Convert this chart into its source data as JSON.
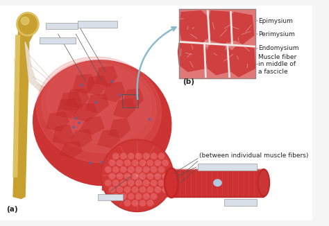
{
  "bg_color": "#f5f5f5",
  "label_a": "(a)",
  "label_b": "(b)",
  "text_epimysium": "Epimysium",
  "text_perimysium": "Perimysium",
  "text_endomysium": "Endomysium",
  "text_muscle_fiber": "Muscle fiber\nin middle of\na fascicle",
  "text_between": "(between individual muscle fibers)",
  "muscle_red": "#cc3333",
  "muscle_mid": "#d94444",
  "muscle_light": "#e87070",
  "muscle_pale": "#f0a8a8",
  "fascicle_dark": "#b52828",
  "fascicle_mid": "#c83030",
  "bone_base": "#c8a030",
  "bone_light": "#ddc060",
  "bone_hilight": "#eedd88",
  "tendon_color": "#e8ddd0",
  "tendon_line": "#d0c0b0",
  "label_box_color": "#d8dfe8",
  "label_box_edge": "#999999",
  "line_color": "#555555",
  "blue_arrow": "#88bbcc",
  "text_color": "#222222",
  "inset_bg": "#d44444",
  "inset_sep": "#f0e8e8",
  "fs_label": 6.5,
  "fs_ab": 7.5,
  "fs_between": 6.5
}
